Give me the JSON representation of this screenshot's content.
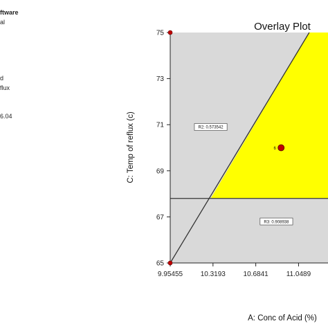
{
  "side_panel": {
    "lines": [
      {
        "text": "ftware",
        "bold": true
      },
      {
        "text": "al",
        "bold": false
      },
      {
        "text": "d",
        "bold": false
      },
      {
        "text": "flux",
        "bold": false
      },
      {
        "text": "6.04",
        "bold": false
      }
    ]
  },
  "chart_data": {
    "type": "overlay-contour",
    "title": "Overlay Plot",
    "xlabel": "A: Conc of Acid (%)",
    "ylabel": "C: Temp of reflux  (c)",
    "xlim": [
      9.95455,
      11.3
    ],
    "ylim": [
      65,
      75
    ],
    "x_ticks": [
      {
        "value": 9.95455,
        "label": "9.95455"
      },
      {
        "value": 10.3193,
        "label": "10.3193"
      },
      {
        "value": 10.6841,
        "label": "10.6841"
      },
      {
        "value": 11.0489,
        "label": "11.0489"
      }
    ],
    "y_ticks": [
      {
        "value": 65,
        "label": "65"
      },
      {
        "value": 67,
        "label": "67"
      },
      {
        "value": 69,
        "label": "69"
      },
      {
        "value": 71,
        "label": "71"
      },
      {
        "value": 73,
        "label": "73"
      },
      {
        "value": 75,
        "label": "75"
      }
    ],
    "colors": {
      "feasible": "#ffff00",
      "infeasible": "#d9d9d9",
      "contour": "#333333",
      "point": "#c00000"
    },
    "feasible_region": [
      [
        11.14,
        75
      ],
      [
        11.3,
        75
      ],
      [
        11.3,
        67.8
      ],
      [
        10.3,
        67.8
      ]
    ],
    "contours": [
      {
        "points": [
          [
            9.95455,
            65
          ],
          [
            11.14,
            75
          ]
        ],
        "label": "R2: 0.573542",
        "label_at": [
          10.3,
          70.9
        ]
      },
      {
        "points": [
          [
            9.95455,
            67.8
          ],
          [
            11.3,
            67.8
          ]
        ],
        "label": "R3: 0.908938",
        "label_at": [
          10.86,
          66.8
        ]
      }
    ],
    "design_points": [
      {
        "x": 9.95455,
        "y": 75
      },
      {
        "x": 9.95455,
        "y": 65
      }
    ],
    "selected_point": {
      "x": 10.9,
      "y": 70,
      "label": "6"
    }
  }
}
